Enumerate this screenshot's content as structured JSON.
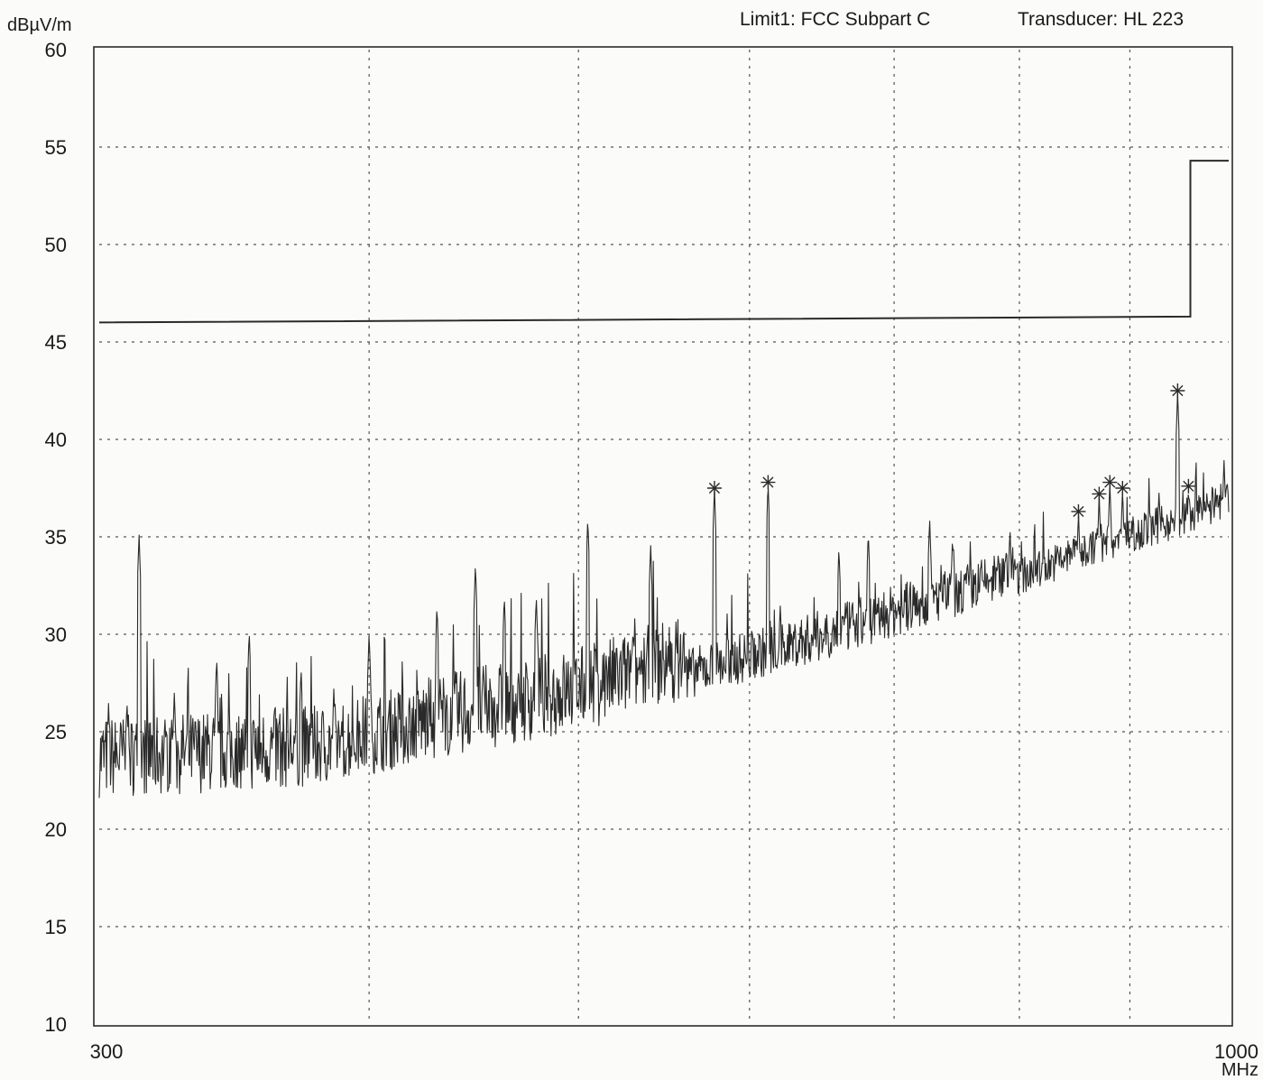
{
  "header": {
    "limit_label": "Limit1: FCC Subpart C",
    "transducer_label": "Transducer: HL 223"
  },
  "chart_data": {
    "type": "line",
    "ylabel": "dBµV/m",
    "xlabel": "MHz",
    "xlim": [
      300,
      1000
    ],
    "ylim": [
      10,
      60
    ],
    "x_scale": "log",
    "x_ticks_labeled": [
      300,
      1000
    ],
    "x_gridlines": [
      400,
      500,
      600,
      700,
      800,
      900
    ],
    "y_ticks": [
      10,
      15,
      20,
      25,
      30,
      35,
      40,
      45,
      50,
      55,
      60
    ],
    "grid": true,
    "colors": {
      "trace": "#2a2a2a",
      "limit": "#2a2a2a",
      "grid": "#555555"
    },
    "limit_line": {
      "name": "FCC Subpart C",
      "points": [
        [
          300,
          46.0
        ],
        [
          960,
          46.3
        ],
        [
          960,
          54.3
        ],
        [
          1000,
          54.3
        ]
      ]
    },
    "baseline": [
      [
        300,
        23.2
      ],
      [
        380,
        23.8
      ],
      [
        400,
        24.4
      ],
      [
        450,
        25.6
      ],
      [
        500,
        26.6
      ],
      [
        550,
        28.0
      ],
      [
        600,
        29.2
      ],
      [
        650,
        30.3
      ],
      [
        700,
        31.5
      ],
      [
        750,
        32.5
      ],
      [
        800,
        33.6
      ],
      [
        850,
        34.8
      ],
      [
        900,
        35.8
      ],
      [
        950,
        36.6
      ],
      [
        1000,
        37.6
      ]
    ],
    "spikes": [
      [
        303,
        26.5
      ],
      [
        309,
        26.6
      ],
      [
        313,
        35.2
      ],
      [
        325,
        27.0
      ],
      [
        340,
        28.8
      ],
      [
        352,
        30.2
      ],
      [
        372,
        28.3
      ],
      [
        400,
        30.1
      ],
      [
        430,
        31.5
      ],
      [
        448,
        33.6
      ],
      [
        462,
        32.0
      ],
      [
        478,
        32.0
      ],
      [
        505,
        36.0
      ],
      [
        540,
        34.6
      ],
      [
        578,
        37.5
      ],
      [
        612,
        37.8
      ],
      [
        660,
        34.5
      ],
      [
        681,
        35.3
      ],
      [
        727,
        36.0
      ],
      [
        745,
        35.0
      ],
      [
        792,
        35.5
      ],
      [
        852,
        36.3
      ],
      [
        871,
        37.2
      ],
      [
        881,
        37.8
      ],
      [
        893,
        37.5
      ],
      [
        947,
        42.5
      ],
      [
        958,
        37.6
      ],
      [
        995,
        39.0
      ]
    ],
    "markers": [
      [
        578,
        37.5
      ],
      [
        612,
        37.8
      ],
      [
        852,
        36.3
      ],
      [
        871,
        37.2
      ],
      [
        881,
        37.8
      ],
      [
        893,
        37.5
      ],
      [
        947,
        42.5
      ],
      [
        958,
        37.6
      ]
    ]
  }
}
